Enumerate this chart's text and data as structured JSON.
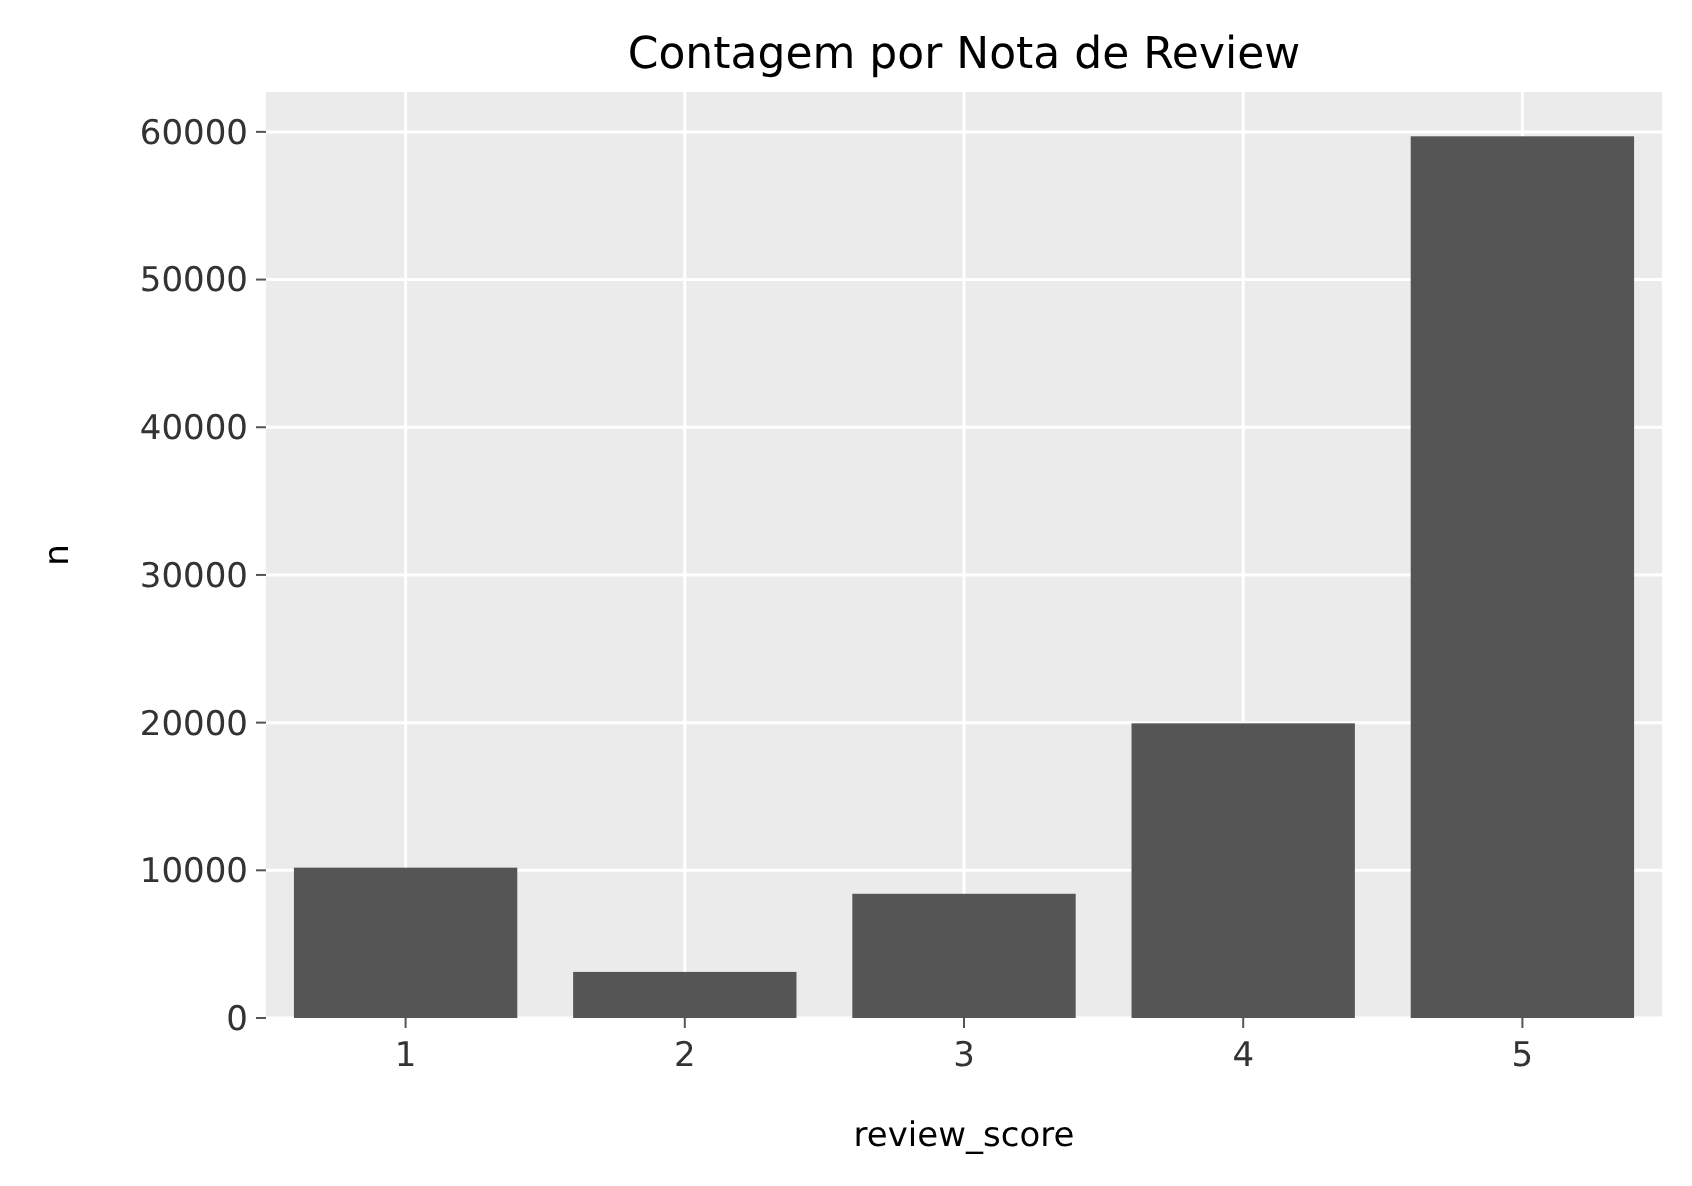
{
  "chart_data": {
    "type": "bar",
    "title": "Contagem por Nota de Review",
    "xlabel": "review_score",
    "ylabel": "n",
    "categories": [
      "1",
      "2",
      "3",
      "4",
      "5"
    ],
    "values": [
      10180,
      3120,
      8410,
      19950,
      59700
    ],
    "color": "#555555",
    "ylim": [
      0,
      62700
    ],
    "yticks": [
      0,
      10000,
      20000,
      30000,
      40000,
      50000,
      60000
    ],
    "grid": true
  }
}
